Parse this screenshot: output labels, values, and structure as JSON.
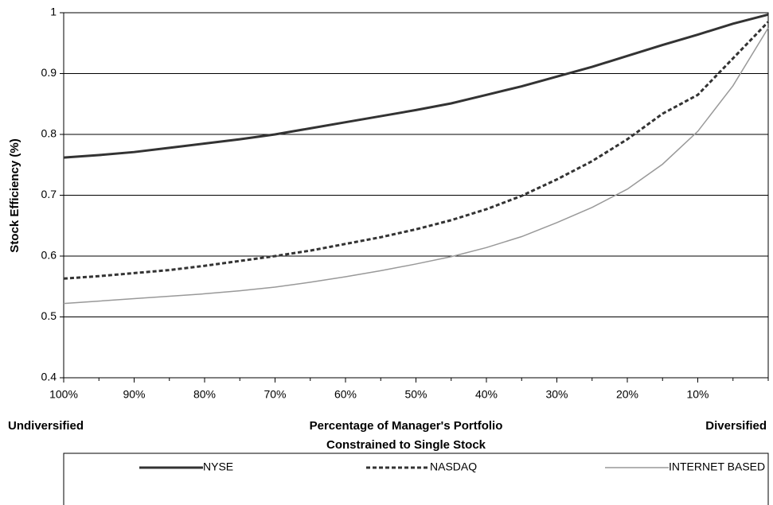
{
  "chart_data": {
    "type": "line",
    "y_label": "Stock Efficiency (%)",
    "x_label": [
      "Percentage of Manager's Portfolio",
      "Constrained to Single Stock"
    ],
    "annotations": [
      "Undiversified",
      "Diversified"
    ],
    "x": [
      100,
      95,
      90,
      85,
      80,
      75,
      70,
      65,
      60,
      55,
      50,
      45,
      40,
      35,
      30,
      25,
      20,
      15,
      10,
      5,
      0
    ],
    "series": [
      {
        "name": "NYSE",
        "color": "#333333",
        "style": "solid",
        "width": 3,
        "values": [
          0.762,
          0.766,
          0.771,
          0.778,
          0.785,
          0.792,
          0.8,
          0.81,
          0.82,
          0.83,
          0.84,
          0.851,
          0.865,
          0.879,
          0.895,
          0.911,
          0.929,
          0.947,
          0.964,
          0.982,
          0.997
        ]
      },
      {
        "name": "NASDAQ",
        "color": "#333333",
        "style": "dashed",
        "width": 3,
        "values": [
          0.563,
          0.567,
          0.572,
          0.577,
          0.584,
          0.592,
          0.6,
          0.609,
          0.62,
          0.631,
          0.644,
          0.659,
          0.677,
          0.699,
          0.726,
          0.756,
          0.792,
          0.834,
          0.865,
          0.925,
          0.985
        ]
      },
      {
        "name": "INTERNET BASED",
        "color": "#999999",
        "style": "solid",
        "width": 1.5,
        "values": [
          0.522,
          0.526,
          0.53,
          0.534,
          0.538,
          0.543,
          0.549,
          0.557,
          0.566,
          0.576,
          0.587,
          0.599,
          0.614,
          0.632,
          0.655,
          0.68,
          0.71,
          0.751,
          0.805,
          0.88,
          0.975
        ]
      }
    ],
    "xlim": [
      100,
      0
    ],
    "xticks": [
      {
        "value": 100,
        "label": "100%"
      },
      {
        "value": 90,
        "label": "90%"
      },
      {
        "value": 80,
        "label": "80%"
      },
      {
        "value": 70,
        "label": "70%"
      },
      {
        "value": 60,
        "label": "60%"
      },
      {
        "value": 50,
        "label": "50%"
      },
      {
        "value": 40,
        "label": "40%"
      },
      {
        "value": 30,
        "label": "30%"
      },
      {
        "value": 20,
        "label": "20%"
      },
      {
        "value": 10,
        "label": "10%"
      }
    ],
    "ylim": [
      0.4,
      1
    ],
    "yticks": [
      0.4,
      0.5,
      0.6,
      0.7,
      0.8,
      0.9,
      1
    ],
    "grid": true,
    "legend": "bottom"
  }
}
